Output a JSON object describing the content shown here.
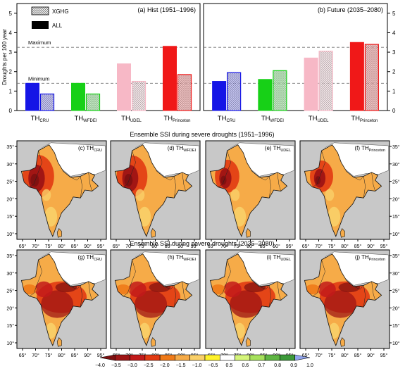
{
  "colors": {
    "cru": "#1515e6",
    "wfdei": "#17d017",
    "udel": "#f7b8c6",
    "princeton": "#f01818",
    "ocean": "#c8c8c8",
    "border": "#111111",
    "highlands": "#ffffff"
  },
  "chart_data": [
    {
      "type": "bar",
      "panel": "a",
      "title": "(a) Hist (1951–1996)",
      "ylabel": "Droughts per 100 year",
      "ylim": [
        0,
        5.5
      ],
      "yticks": [
        0,
        1,
        2,
        3,
        4,
        5
      ],
      "categories": [
        "TH_CRU",
        "TH_WFDEI",
        "TH_UDEL",
        "TH_Princeton"
      ],
      "category_labels": [
        {
          "base": "TH",
          "sub": "CRU"
        },
        {
          "base": "TH",
          "sub": "WFDEI"
        },
        {
          "base": "TH",
          "sub": "UDEL"
        },
        {
          "base": "TH",
          "sub": "Princeton"
        }
      ],
      "series": [
        {
          "name": "ALL",
          "values": [
            1.4,
            1.4,
            2.4,
            3.3
          ]
        },
        {
          "name": "XGHG",
          "values": [
            0.85,
            0.85,
            1.5,
            1.85
          ]
        }
      ],
      "reference_lines": [
        {
          "label": "Maximum",
          "y": 3.25
        },
        {
          "label": "Minimum",
          "y": 1.4
        }
      ]
    },
    {
      "type": "bar",
      "panel": "b",
      "title": "(b) Future (2035–2080)",
      "ylim": [
        0,
        5.5
      ],
      "yticks": [
        0,
        1,
        2,
        3,
        4,
        5
      ],
      "categories": [
        "TH_CRU",
        "TH_WFDEI",
        "TH_UDEL",
        "TH_Princeton"
      ],
      "category_labels": [
        {
          "base": "TH",
          "sub": "CRU"
        },
        {
          "base": "TH",
          "sub": "WFDEI"
        },
        {
          "base": "TH",
          "sub": "UDEL"
        },
        {
          "base": "TH",
          "sub": "Princeton"
        }
      ],
      "series": [
        {
          "name": "ALL",
          "values": [
            1.5,
            1.6,
            2.7,
            3.5
          ]
        },
        {
          "name": "XGHG",
          "values": [
            1.95,
            2.05,
            3.05,
            3.4
          ]
        }
      ],
      "reference_lines": [
        {
          "y": 3.25
        },
        {
          "y": 1.4
        }
      ]
    },
    {
      "type": "heatmap",
      "section_title": "Ensemble SSI during severe droughts (1951–1996)",
      "x_ticks": [
        "65°",
        "70°",
        "75°",
        "80°",
        "85°",
        "90°",
        "95°"
      ],
      "y_ticks": [
        "35°",
        "30°",
        "25°",
        "20°",
        "15°",
        "10°"
      ],
      "maps": [
        {
          "label": {
            "prefix": "(c) TH",
            "sub": "CRU"
          },
          "intensity": 0.75
        },
        {
          "label": {
            "prefix": "(d) TH",
            "sub": "WFDEI"
          },
          "intensity": 0.72
        },
        {
          "label": {
            "prefix": "(e) TH",
            "sub": "UDEL"
          },
          "intensity": 0.45
        },
        {
          "label": {
            "prefix": "(f) TH",
            "sub": "Princeton"
          },
          "intensity": 0.4
        }
      ]
    },
    {
      "type": "heatmap",
      "section_title": "Ensemble SSI during severe droughts (2035–2080)",
      "x_ticks": [
        "65°",
        "70°",
        "75°",
        "80°",
        "85°",
        "90°",
        "95°"
      ],
      "y_ticks": [
        "35°",
        "30°",
        "25°",
        "20°",
        "15°",
        "10°"
      ],
      "maps": [
        {
          "label": {
            "prefix": "(g) TH",
            "sub": "CRU"
          },
          "intensity": 0.7
        },
        {
          "label": {
            "prefix": "(h) TH",
            "sub": "WFDEI"
          },
          "intensity": 0.7
        },
        {
          "label": {
            "prefix": "(i) TH",
            "sub": "UDEL"
          },
          "intensity": 0.72
        },
        {
          "label": {
            "prefix": "(j) TH",
            "sub": "Princeton"
          },
          "intensity": 0.68
        }
      ]
    }
  ],
  "colorbar": {
    "ticks": [
      "−4.0",
      "−3.5",
      "−3.0",
      "−2.5",
      "−2.0",
      "−1.5",
      "−1.0",
      "−0.5",
      "0.5",
      "0.6",
      "0.7",
      "0.8",
      "0.9",
      "1.0"
    ],
    "colors": [
      "#7d1010",
      "#9e1414",
      "#c21a1a",
      "#e23a12",
      "#f07a18",
      "#f6ab48",
      "#fad069",
      "#fff22a",
      "#ffffff",
      "#d5f57a",
      "#a6e15c",
      "#5fb643",
      "#3d9a3a",
      "#8fa3ec"
    ]
  }
}
